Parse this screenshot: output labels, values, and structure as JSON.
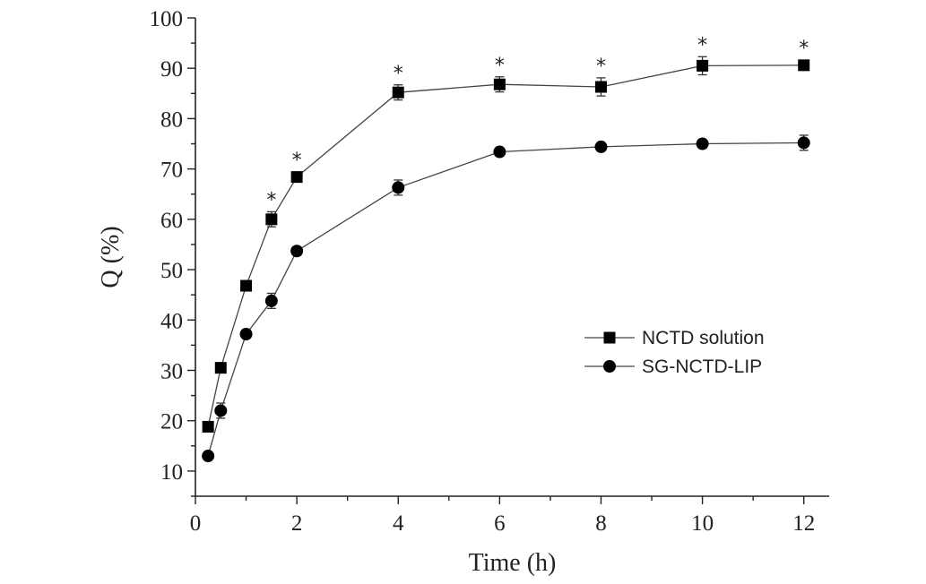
{
  "chart_data": {
    "type": "line",
    "title": "",
    "xlabel": "Time (h)",
    "ylabel": "Q (%)",
    "xlim": [
      0,
      12.5
    ],
    "ylim": [
      5,
      100
    ],
    "xticks": [
      0,
      2,
      4,
      6,
      8,
      10,
      12
    ],
    "yticks": [
      10,
      20,
      30,
      40,
      50,
      60,
      70,
      80,
      90,
      100
    ],
    "grid": false,
    "legend_position": "center-right",
    "series": [
      {
        "name": "NCTD solution",
        "marker": "square",
        "color": "#000000",
        "x": [
          0.25,
          0.5,
          1,
          1.5,
          2,
          4,
          6,
          8,
          10,
          12
        ],
        "y": [
          18.8,
          30.5,
          46.8,
          60.0,
          68.4,
          85.2,
          86.8,
          86.3,
          90.5,
          90.6
        ],
        "err": [
          0.8,
          1.0,
          0.8,
          1.5,
          1.0,
          1.5,
          1.5,
          1.8,
          1.8,
          1.0
        ]
      },
      {
        "name": "SG-NCTD-LIP",
        "marker": "circle",
        "color": "#000000",
        "x": [
          0.25,
          0.5,
          1,
          1.5,
          2,
          4,
          6,
          8,
          10,
          12
        ],
        "y": [
          13.0,
          22.0,
          37.2,
          43.8,
          53.7,
          66.3,
          73.4,
          74.4,
          75.0,
          75.2
        ],
        "err": [
          0.5,
          1.5,
          0.8,
          1.5,
          0.8,
          1.5,
          0.8,
          0.8,
          0.8,
          1.5
        ]
      }
    ],
    "annotations": [
      {
        "text": "*",
        "x": 1.5
      },
      {
        "text": "*",
        "x": 2
      },
      {
        "text": "*",
        "x": 4
      },
      {
        "text": "*",
        "x": 6
      },
      {
        "text": "*",
        "x": 8
      },
      {
        "text": "*",
        "x": 10
      },
      {
        "text": "*",
        "x": 12
      }
    ]
  }
}
